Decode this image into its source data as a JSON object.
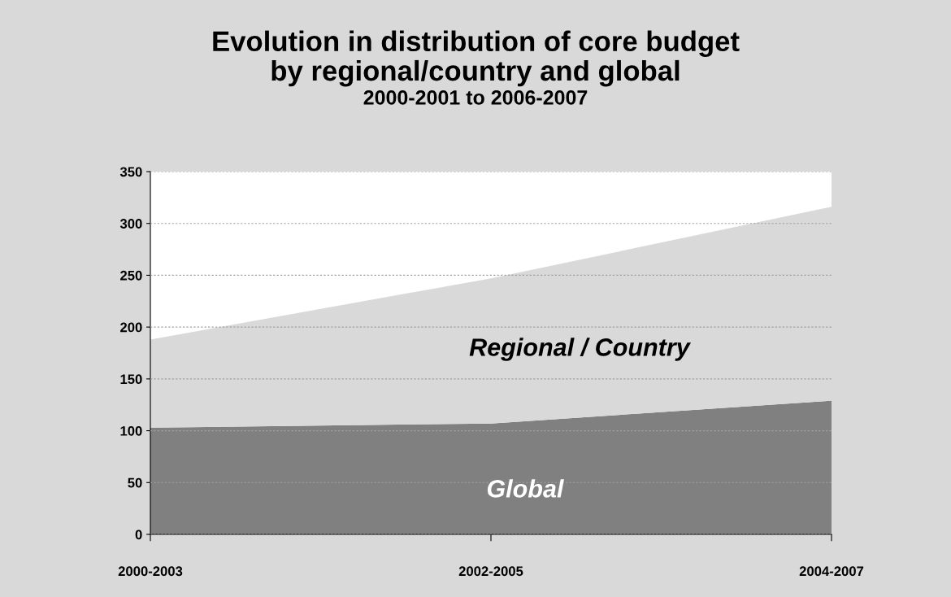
{
  "chart_data": {
    "type": "area",
    "title": "Evolution in distribution of core budget\nby regional/country and global",
    "subtitle": "2000-2001 to 2006-2007",
    "categories": [
      "2000-2003",
      "2002-2005",
      "2004-2007"
    ],
    "stacked": true,
    "series": [
      {
        "name": "Global",
        "color": "#808080",
        "values": [
          103,
          107,
          129
        ]
      },
      {
        "name": "Regional / Country",
        "color": "#d9d9d9",
        "values": [
          85,
          140,
          187
        ]
      }
    ],
    "ylim": [
      0,
      350
    ],
    "yticks": [
      0,
      50,
      100,
      150,
      200,
      250,
      300,
      350
    ],
    "grid": "y",
    "legend": false
  }
}
